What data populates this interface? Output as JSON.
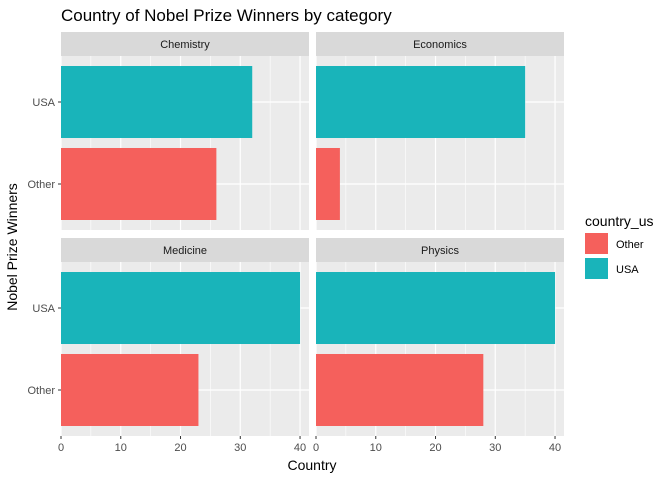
{
  "chart_data": {
    "type": "bar",
    "orientation": "horizontal",
    "title": "Country of Nobel Prize Winners by category",
    "xlabel": "Country",
    "ylabel": "Nobel Prize Winners",
    "xlim": [
      0,
      41.5
    ],
    "xticks": [
      0,
      10,
      20,
      30,
      40
    ],
    "categories": [
      "USA",
      "Other"
    ],
    "grid": true,
    "legend": {
      "title": "country_us",
      "position": "right",
      "entries": [
        {
          "name": "Other",
          "color": "#F8766D"
        },
        {
          "name": "USA",
          "color": "#00BFC4"
        }
      ]
    },
    "facets": [
      {
        "name": "Chemistry",
        "values": {
          "USA": 32,
          "Other": 26
        }
      },
      {
        "name": "Economics",
        "values": {
          "USA": 35,
          "Other": 4
        }
      },
      {
        "name": "Medicine",
        "values": {
          "USA": 40,
          "Other": 23
        }
      },
      {
        "name": "Physics",
        "values": {
          "USA": 40,
          "Other": 28
        }
      }
    ],
    "colors": {
      "USA": "#19B4BA",
      "Other": "#F5605C",
      "panel_bg": "#EBEBEB",
      "strip_bg": "#D9D9D9",
      "grid": "#FFFFFF"
    }
  }
}
